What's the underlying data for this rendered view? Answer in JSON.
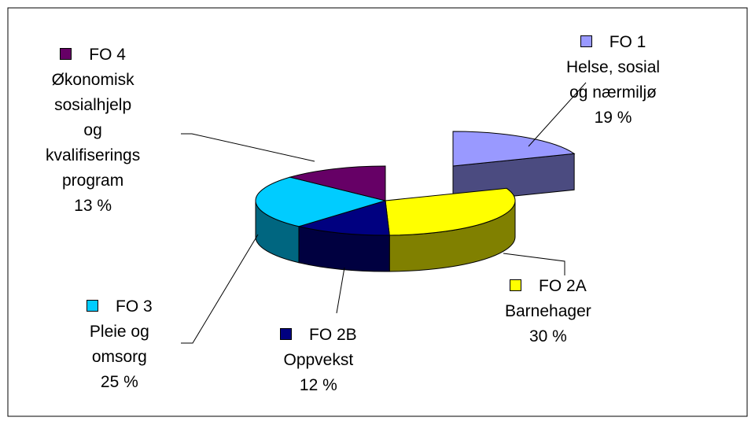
{
  "chart_data": {
    "type": "pie",
    "title": "",
    "slices": [
      {
        "label_lines": [
          "FO 1",
          "Helse, sosial",
          "og nærmiljø"
        ],
        "pct_label": "19 %",
        "value": 19,
        "color": "#9999ff",
        "side": "#4b4b80"
      },
      {
        "label_lines": [
          "FO 2A",
          "Barnehager"
        ],
        "pct_label": "30 %",
        "value": 30,
        "color": "#ffff00",
        "side": "#808000"
      },
      {
        "label_lines": [
          "FO 2B",
          "Oppvekst"
        ],
        "pct_label": "12 %",
        "value": 12,
        "color": "#000080",
        "side": "#000040"
      },
      {
        "label_lines": [
          "FO 3",
          "Pleie og",
          "omsorg"
        ],
        "pct_label": "25 %",
        "value": 25,
        "color": "#00ccff",
        "side": "#006680"
      },
      {
        "label_lines": [
          "FO 4",
          "Økonomisk",
          "sosialhjelp",
          "og",
          "kvalifiserings",
          "program"
        ],
        "pct_label": "13 %",
        "value": 13,
        "color": "#660066",
        "side": "#330033"
      }
    ],
    "exploded": [
      "FO 1"
    ],
    "legend": "none",
    "style": "3d-pie"
  }
}
